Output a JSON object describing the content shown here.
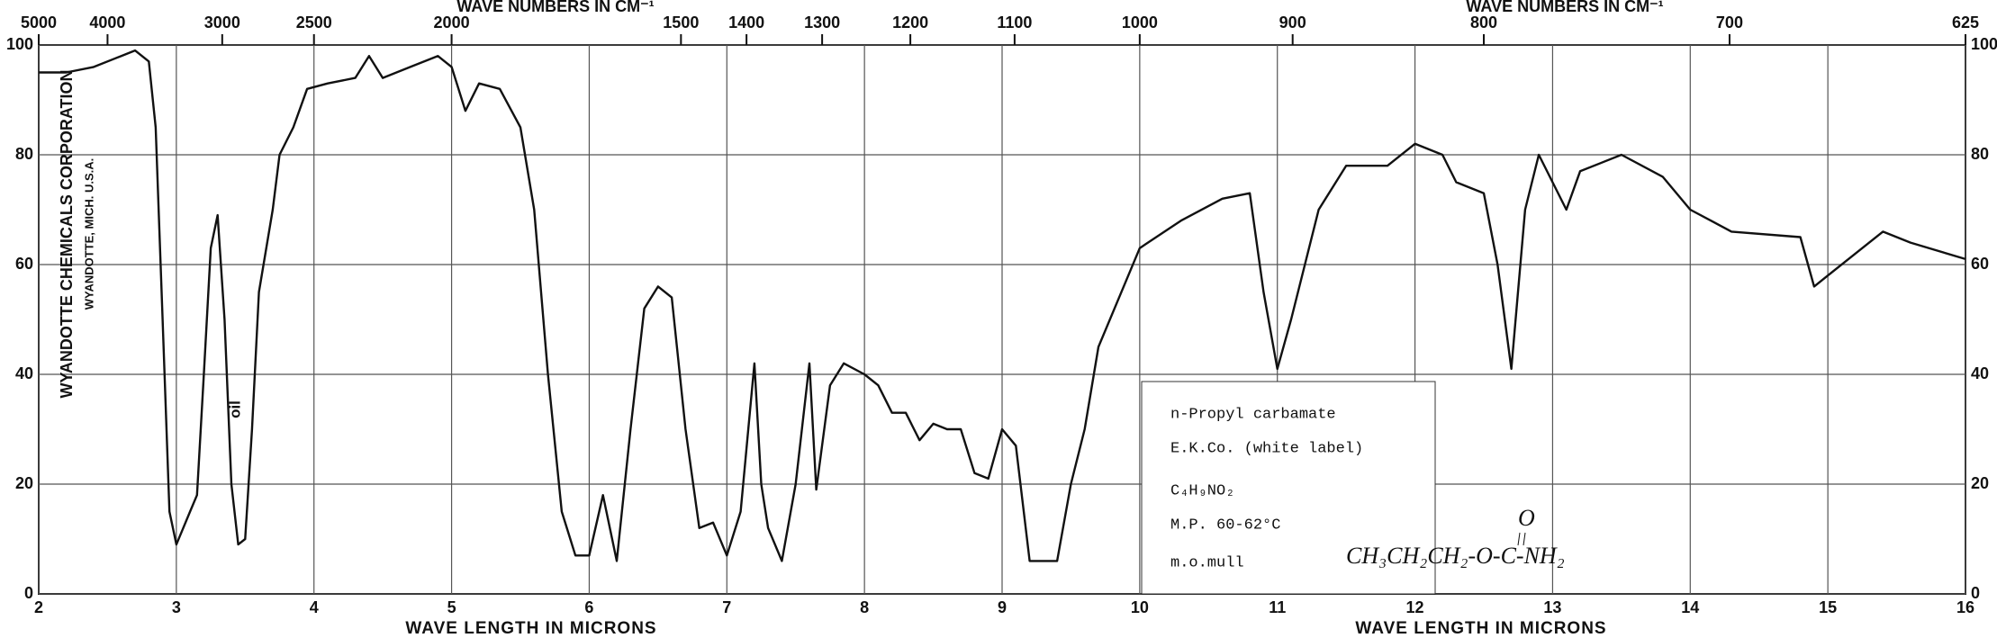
{
  "chart_data": {
    "type": "line",
    "xlabel": "WAVE LENGTH IN MICRONS",
    "x2label": "WAVE NUMBERS IN CM⁻¹",
    "xlim": [
      2,
      16
    ],
    "ylim": [
      0,
      100
    ],
    "xticks": [
      2,
      3,
      4,
      5,
      6,
      7,
      8,
      9,
      10,
      11,
      12,
      13,
      14,
      15,
      16
    ],
    "yticks": [
      0,
      20,
      40,
      60,
      80,
      100
    ],
    "x2ticks": [
      5000,
      4000,
      3000,
      2500,
      2000,
      1500,
      1400,
      1300,
      1200,
      1100,
      1000,
      900,
      800,
      700,
      625
    ],
    "grid": true,
    "series": [
      {
        "color": "#111111",
        "x": [
          2.0,
          2.2,
          2.4,
          2.6,
          2.7,
          2.8,
          2.85,
          2.9,
          2.95,
          3.0,
          3.05,
          3.1,
          3.15,
          3.2,
          3.25,
          3.3,
          3.35,
          3.4,
          3.45,
          3.5,
          3.55,
          3.6,
          3.7,
          3.75,
          3.85,
          3.95,
          4.1,
          4.3,
          4.4,
          4.5,
          4.7,
          4.9,
          5.0,
          5.1,
          5.2,
          5.35,
          5.5,
          5.6,
          5.7,
          5.8,
          5.9,
          6.0,
          6.1,
          6.2,
          6.3,
          6.4,
          6.5,
          6.6,
          6.7,
          6.8,
          6.9,
          7.0,
          7.1,
          7.2,
          7.25,
          7.3,
          7.4,
          7.5,
          7.6,
          7.65,
          7.75,
          7.85,
          8.0,
          8.1,
          8.2,
          8.3,
          8.4,
          8.5,
          8.6,
          8.7,
          8.8,
          8.9,
          9.0,
          9.1,
          9.2,
          9.4,
          9.5,
          9.6,
          9.7,
          9.9,
          10.0,
          10.3,
          10.6,
          10.8,
          10.9,
          11.0,
          11.1,
          11.3,
          11.5,
          11.8,
          12.0,
          12.2,
          12.3,
          12.5,
          12.6,
          12.7,
          12.8,
          12.9,
          13.1,
          13.2,
          13.5,
          13.8,
          14.0,
          14.3,
          14.8,
          14.9,
          15.0,
          15.2,
          15.4,
          15.6,
          16.0
        ],
        "values": [
          95,
          95,
          96,
          98,
          99,
          97,
          85,
          50,
          15,
          9,
          12,
          15,
          18,
          40,
          63,
          69,
          50,
          20,
          9,
          10,
          30,
          55,
          70,
          80,
          85,
          92,
          93,
          94,
          98,
          94,
          96,
          98,
          96,
          88,
          93,
          92,
          85,
          70,
          40,
          15,
          7,
          7,
          18,
          6,
          30,
          52,
          56,
          54,
          30,
          12,
          13,
          7,
          15,
          42,
          20,
          12,
          6,
          20,
          42,
          19,
          38,
          42,
          40,
          38,
          33,
          33,
          28,
          31,
          30,
          30,
          22,
          21,
          30,
          27,
          6,
          6,
          20,
          30,
          45,
          57,
          63,
          68,
          72,
          73,
          55,
          41,
          50,
          70,
          78,
          78,
          82,
          80,
          75,
          73,
          60,
          41,
          70,
          80,
          70,
          77,
          80,
          76,
          70,
          66,
          65,
          56,
          58,
          62,
          66,
          64,
          61
        ]
      }
    ],
    "annotations": {
      "company": "WYANDOTTE CHEMICALS CORPORATION",
      "location": "WYANDOTTE, MICH. U.S.A.",
      "oil": "oil",
      "sample": [
        "n-Propyl carbamate",
        "E.K.Co. (white label)",
        "C₄H₉NO₂",
        "M.P. 60-62°C",
        "m.o.mull"
      ],
      "carbonyl": "O",
      "structure": "CH₃CH₂CH₂-O-C-NH₂"
    }
  }
}
